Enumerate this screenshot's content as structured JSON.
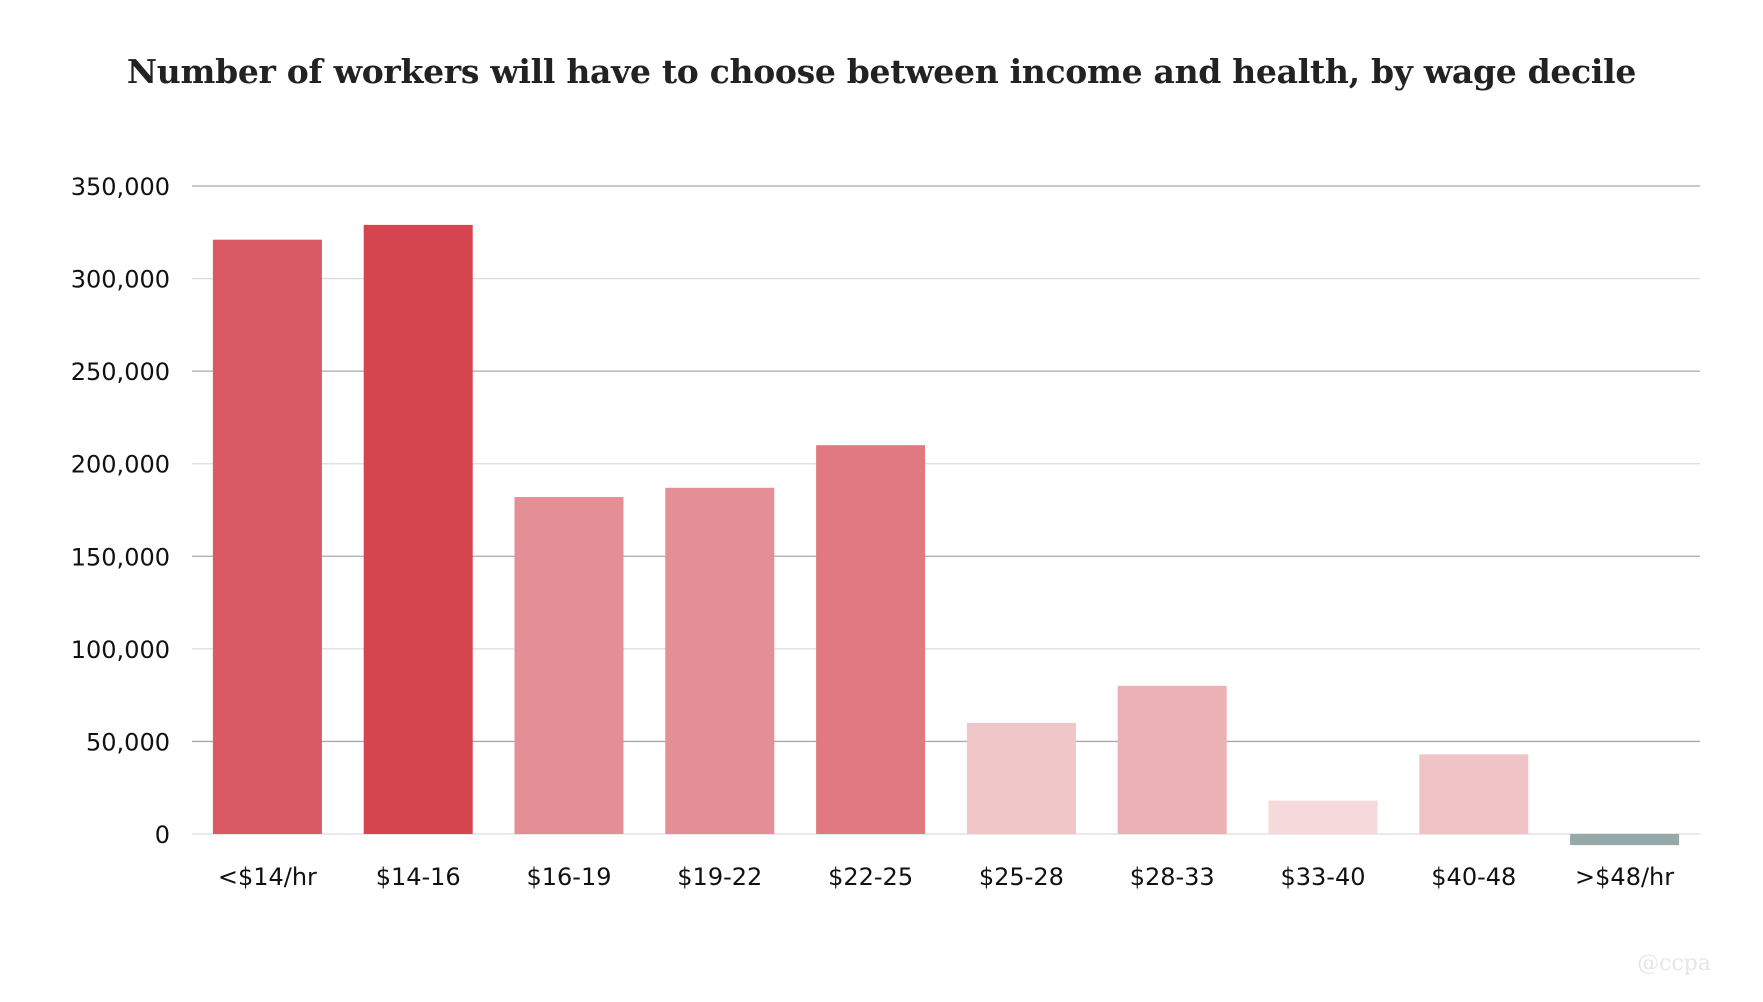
{
  "chart_data": {
    "type": "bar",
    "title": "Number of workers will have to choose between income and health, by wage decile",
    "xlabel": "",
    "ylabel": "",
    "categories": [
      "<$14/hr",
      "$14-16",
      "$16-19",
      "$19-22",
      "$22-25",
      "$25-28",
      "$28-33",
      "$33-40",
      "$40-48",
      ">$48/hr"
    ],
    "values": [
      321000,
      329000,
      182000,
      187000,
      210000,
      60000,
      80000,
      18000,
      43000,
      -6000
    ],
    "bar_colors": [
      "#d95a62",
      "#d4454f",
      "#e48f95",
      "#e48f95",
      "#e07a80",
      "#f1c6c8",
      "#ecb1b5",
      "#f6dadb",
      "#f0c4c6",
      "#96a8a8"
    ],
    "ylim": [
      0,
      350000
    ],
    "yticks": [
      0,
      50000,
      100000,
      150000,
      200000,
      250000,
      300000,
      350000
    ],
    "ytick_labels": [
      "0",
      "50,000",
      "100,000",
      "150,000",
      "200,000",
      "250,000",
      "300,000",
      "350,000"
    ],
    "grid": true,
    "legend": "none"
  },
  "watermark": "@ccpa"
}
